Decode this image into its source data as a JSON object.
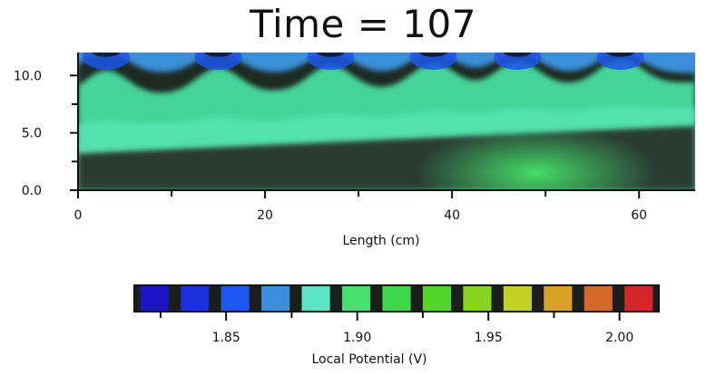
{
  "title": "Time = 107",
  "colors": {
    "background": "#ffffff",
    "axis": "#111111",
    "colormap": [
      "#1a16c8",
      "#1c2fdc",
      "#1f55f0",
      "#3a8ee0",
      "#5ae6c2",
      "#47e070",
      "#3ed74a",
      "#52d62a",
      "#86d41e",
      "#c2d224",
      "#d9a226",
      "#d7682c",
      "#d6262a"
    ]
  },
  "chart_data": [
    {
      "type": "heatmap",
      "title": "Time = 107",
      "xlabel": "Length (cm)",
      "ylabel": "",
      "xlim": [
        0,
        66
      ],
      "ylim": [
        0,
        12
      ],
      "x_ticks": [
        0,
        20,
        40,
        60
      ],
      "x_tick_labels": [
        "0",
        "20",
        "40",
        "60"
      ],
      "x_minor_ticks": [
        10,
        30,
        50
      ],
      "y_ticks": [
        0,
        5,
        10
      ],
      "y_tick_labels": [
        "0.0",
        "5.0",
        "10.0"
      ],
      "y_minor_ticks": [
        2.5,
        7.5
      ],
      "wave_crest_x": [
        3,
        15,
        27,
        38,
        47,
        58
      ],
      "potential_range": [
        1.815,
        2.015
      ],
      "grid": false
    },
    {
      "type": "colorbar",
      "xlabel": "Local Potential (V)",
      "range": [
        1.815,
        2.015
      ],
      "ticks": [
        1.85,
        1.9,
        1.95,
        2.0
      ],
      "tick_labels": [
        "1.85",
        "1.90",
        "1.95",
        "2.00"
      ],
      "minor_ticks": [
        1.825,
        1.875,
        1.925,
        1.975
      ]
    }
  ]
}
